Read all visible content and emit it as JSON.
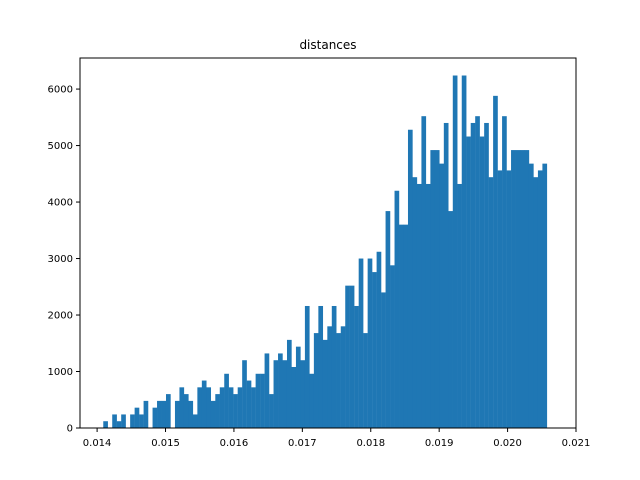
{
  "chart_data": {
    "type": "bar",
    "title": "distances",
    "xlabel": "",
    "ylabel": "",
    "xlim": [
      0.01375,
      0.021
    ],
    "ylim": [
      0,
      6550
    ],
    "x_ticks": [
      0.014,
      0.015,
      0.016,
      0.017,
      0.018,
      0.019,
      0.02,
      0.021
    ],
    "x_tick_labels": [
      "0.014",
      "0.015",
      "0.016",
      "0.017",
      "0.018",
      "0.019",
      "0.020",
      "0.021"
    ],
    "y_ticks": [
      0,
      1000,
      2000,
      3000,
      4000,
      5000,
      6000
    ],
    "y_tick_labels": [
      "0",
      "1000",
      "2000",
      "3000",
      "4000",
      "5000",
      "6000"
    ],
    "bar_color": "#1f77b4",
    "bin_edges_start": 0.01409,
    "bin_width": 6.55e-05,
    "values": [
      120,
      0,
      240,
      120,
      240,
      0,
      240,
      360,
      240,
      480,
      0,
      360,
      480,
      480,
      600,
      0,
      480,
      720,
      600,
      480,
      240,
      720,
      840,
      720,
      480,
      600,
      720,
      960,
      720,
      600,
      720,
      1200,
      840,
      720,
      960,
      960,
      1320,
      600,
      1200,
      1320,
      1200,
      1560,
      1080,
      1440,
      1200,
      2160,
      960,
      1680,
      2160,
      1560,
      1800,
      2160,
      1680,
      1800,
      2520,
      2520,
      2160,
      3000,
      1680,
      3000,
      2760,
      3120,
      2400,
      3840,
      2880,
      4200,
      3600,
      3600,
      5280,
      4440,
      4320,
      5520,
      4320,
      4920,
      4920,
      4680,
      5400,
      3840,
      6240,
      4320,
      6240,
      5160,
      5400,
      5520,
      5160,
      5400,
      4440,
      5880,
      4560,
      5520,
      4560,
      4920,
      4920,
      4920,
      4920,
      4680,
      4440,
      4560,
      4680
    ]
  }
}
